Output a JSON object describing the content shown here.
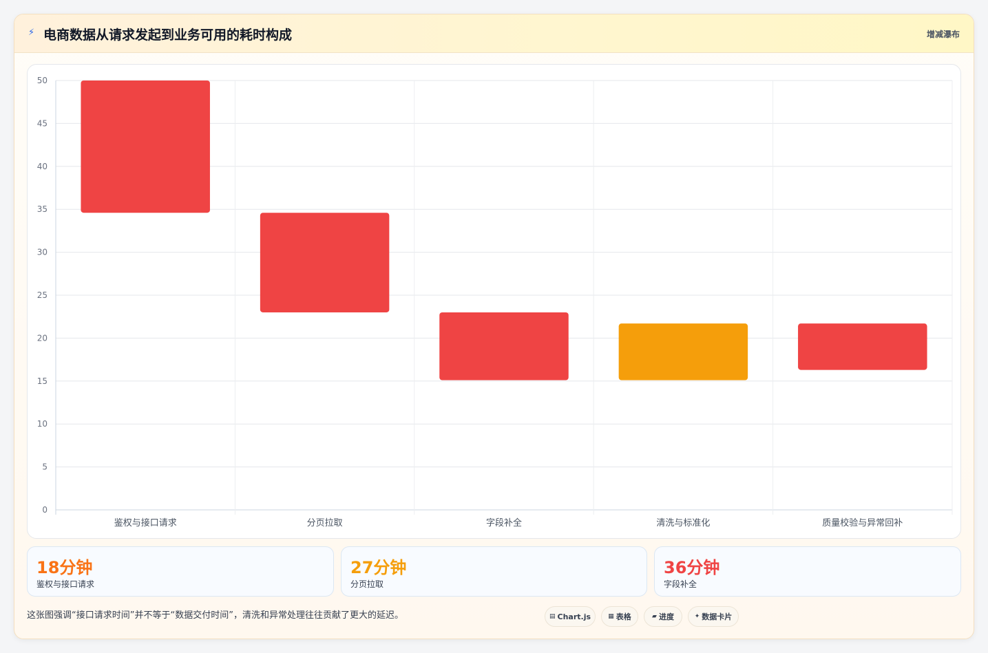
{
  "header": {
    "title": "电商数据从请求发起到业务可用的耗时构成",
    "icon": "lightning-icon",
    "tag": "增减瀑布"
  },
  "chart_data": {
    "type": "bar",
    "subtype": "floating-waterfall",
    "categories": [
      "鉴权与接口请求",
      "分页拉取",
      "字段补全",
      "清洗与标准化",
      "质量校验与异常回补"
    ],
    "ranges": [
      [
        34.6,
        50
      ],
      [
        23,
        34.6
      ],
      [
        15.1,
        23
      ],
      [
        15.1,
        21.7
      ],
      [
        16.3,
        21.7
      ]
    ],
    "colors": [
      "#ef4444",
      "#ef4444",
      "#ef4444",
      "#f59e0b",
      "#ef4444"
    ],
    "ylim": [
      0,
      50
    ],
    "yticks": [
      0,
      5,
      10,
      15,
      20,
      25,
      30,
      35,
      40,
      45,
      50
    ],
    "grid": true,
    "legend": "none"
  },
  "stats": [
    {
      "value": "18分钟",
      "label": "鉴权与接口请求",
      "color": "#f97316"
    },
    {
      "value": "27分钟",
      "label": "分页拉取",
      "color": "#f59e0b"
    },
    {
      "value": "36分钟",
      "label": "字段补全",
      "color": "#ef4444"
    }
  ],
  "note": "这张图强调“接口请求时间”并不等于“数据交付时间”，清洗和异常处理往往贡献了更大的延迟。",
  "chips": [
    {
      "icon": "chart-icon",
      "glyph": "▤",
      "label": "Chart.js"
    },
    {
      "icon": "table-icon",
      "glyph": "▦",
      "label": "表格"
    },
    {
      "icon": "progress-icon",
      "glyph": "▰",
      "label": "进度"
    },
    {
      "icon": "sparkle-icon",
      "glyph": "✦",
      "label": "数据卡片"
    }
  ]
}
